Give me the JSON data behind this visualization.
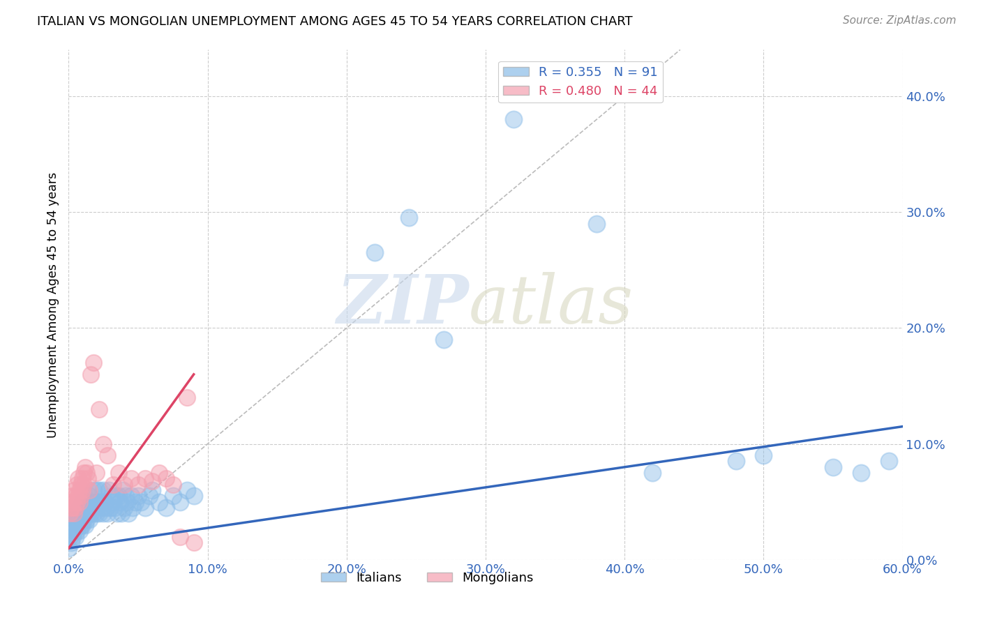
{
  "title": "ITALIAN VS MONGOLIAN UNEMPLOYMENT AMONG AGES 45 TO 54 YEARS CORRELATION CHART",
  "source": "Source: ZipAtlas.com",
  "ylabel": "Unemployment Among Ages 45 to 54 years",
  "xlim": [
    0.0,
    0.6
  ],
  "ylim": [
    0.0,
    0.44
  ],
  "xticks": [
    0.0,
    0.1,
    0.2,
    0.3,
    0.4,
    0.5,
    0.6
  ],
  "yticks": [
    0.0,
    0.1,
    0.2,
    0.3,
    0.4
  ],
  "italian_color": "#8BBCE8",
  "mongolian_color": "#F4A0B0",
  "italian_line_color": "#3366BB",
  "mongolian_line_color": "#DD4466",
  "italian_R": 0.355,
  "italian_N": 91,
  "mongolian_R": 0.48,
  "mongolian_N": 44,
  "italian_line_x0": 0.0,
  "italian_line_y0": 0.01,
  "italian_line_x1": 0.6,
  "italian_line_y1": 0.115,
  "mongolian_line_x0": 0.0,
  "mongolian_line_y0": 0.01,
  "mongolian_line_x1": 0.09,
  "mongolian_line_y1": 0.16,
  "italian_scatter_x": [
    0.0,
    0.001,
    0.002,
    0.002,
    0.003,
    0.003,
    0.004,
    0.004,
    0.005,
    0.005,
    0.005,
    0.006,
    0.006,
    0.007,
    0.007,
    0.008,
    0.008,
    0.008,
    0.009,
    0.009,
    0.01,
    0.01,
    0.01,
    0.011,
    0.011,
    0.012,
    0.012,
    0.013,
    0.013,
    0.014,
    0.014,
    0.015,
    0.015,
    0.016,
    0.016,
    0.017,
    0.018,
    0.018,
    0.019,
    0.02,
    0.02,
    0.021,
    0.022,
    0.022,
    0.023,
    0.024,
    0.025,
    0.025,
    0.026,
    0.027,
    0.028,
    0.029,
    0.03,
    0.031,
    0.032,
    0.033,
    0.034,
    0.035,
    0.036,
    0.037,
    0.038,
    0.039,
    0.04,
    0.041,
    0.042,
    0.043,
    0.045,
    0.046,
    0.048,
    0.05,
    0.052,
    0.055,
    0.058,
    0.06,
    0.065,
    0.07,
    0.075,
    0.08,
    0.085,
    0.09,
    0.22,
    0.245,
    0.27,
    0.32,
    0.38,
    0.42,
    0.48,
    0.5,
    0.55,
    0.57,
    0.59
  ],
  "italian_scatter_y": [
    0.01,
    0.02,
    0.015,
    0.025,
    0.02,
    0.03,
    0.025,
    0.035,
    0.02,
    0.03,
    0.04,
    0.025,
    0.035,
    0.03,
    0.04,
    0.025,
    0.035,
    0.045,
    0.03,
    0.04,
    0.03,
    0.04,
    0.05,
    0.035,
    0.045,
    0.03,
    0.05,
    0.035,
    0.045,
    0.04,
    0.05,
    0.035,
    0.055,
    0.04,
    0.05,
    0.045,
    0.04,
    0.06,
    0.05,
    0.04,
    0.06,
    0.05,
    0.04,
    0.06,
    0.05,
    0.045,
    0.04,
    0.06,
    0.05,
    0.045,
    0.04,
    0.06,
    0.045,
    0.055,
    0.05,
    0.045,
    0.055,
    0.04,
    0.055,
    0.05,
    0.04,
    0.06,
    0.045,
    0.055,
    0.05,
    0.04,
    0.055,
    0.045,
    0.05,
    0.055,
    0.05,
    0.045,
    0.055,
    0.06,
    0.05,
    0.045,
    0.055,
    0.05,
    0.06,
    0.055,
    0.265,
    0.295,
    0.19,
    0.38,
    0.29,
    0.075,
    0.085,
    0.09,
    0.08,
    0.075,
    0.085
  ],
  "mongolian_scatter_x": [
    0.001,
    0.002,
    0.002,
    0.003,
    0.003,
    0.004,
    0.004,
    0.005,
    0.005,
    0.006,
    0.006,
    0.007,
    0.007,
    0.008,
    0.008,
    0.009,
    0.009,
    0.01,
    0.01,
    0.011,
    0.011,
    0.012,
    0.013,
    0.014,
    0.015,
    0.016,
    0.018,
    0.02,
    0.022,
    0.025,
    0.028,
    0.032,
    0.036,
    0.04,
    0.045,
    0.05,
    0.055,
    0.06,
    0.065,
    0.07,
    0.075,
    0.08,
    0.085,
    0.09
  ],
  "mongolian_scatter_y": [
    0.04,
    0.045,
    0.05,
    0.045,
    0.055,
    0.04,
    0.06,
    0.045,
    0.055,
    0.05,
    0.065,
    0.055,
    0.07,
    0.06,
    0.05,
    0.065,
    0.055,
    0.07,
    0.06,
    0.065,
    0.075,
    0.08,
    0.075,
    0.07,
    0.06,
    0.16,
    0.17,
    0.075,
    0.13,
    0.1,
    0.09,
    0.065,
    0.075,
    0.065,
    0.07,
    0.065,
    0.07,
    0.068,
    0.075,
    0.07,
    0.065,
    0.02,
    0.14,
    0.015
  ]
}
